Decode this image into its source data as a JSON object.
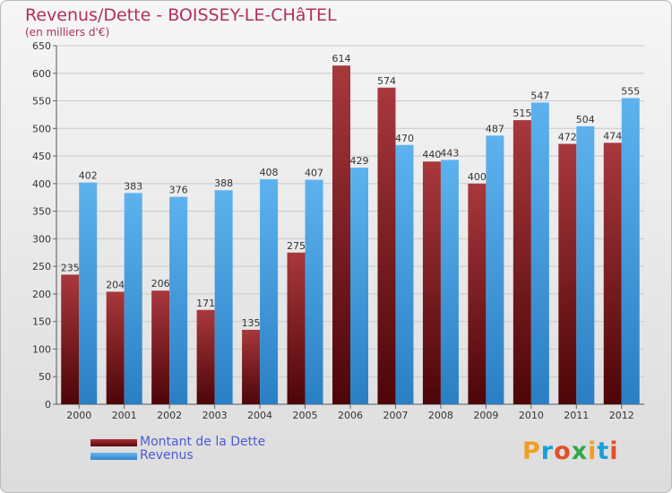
{
  "header": {
    "title": "Revenus/Dette - BOISSEY-LE-CHâTEL",
    "subtitle": "(en milliers d'€)"
  },
  "legend": {
    "dette_label": "Montant de la Dette",
    "revenus_label": "Revenus"
  },
  "logo": {
    "text": "Proxiti"
  },
  "colors": {
    "dette": "#7a1418",
    "revenus": "#4aa3e6",
    "title": "#b0305a",
    "legend_text": "#4b5bd4",
    "grid": "#c8c8c8"
  },
  "chart_data": {
    "type": "bar",
    "title": "Revenus/Dette - BOISSEY-LE-CHâTEL",
    "subtitle": "(en milliers d'€)",
    "categories": [
      "2000",
      "2001",
      "2002",
      "2003",
      "2004",
      "2005",
      "2006",
      "2007",
      "2008",
      "2009",
      "2010",
      "2011",
      "2012"
    ],
    "series": [
      {
        "name": "Montant de la Dette",
        "values": [
          235,
          204,
          206,
          171,
          135,
          275,
          614,
          574,
          440,
          400,
          515,
          472,
          474
        ]
      },
      {
        "name": "Revenus",
        "values": [
          402,
          383,
          376,
          388,
          408,
          407,
          429,
          470,
          443,
          487,
          547,
          504,
          555
        ]
      }
    ],
    "ylim": [
      0,
      650
    ],
    "yticks": [
      0,
      50,
      100,
      150,
      200,
      250,
      300,
      350,
      400,
      450,
      500,
      550,
      600,
      650
    ],
    "grid": true,
    "legend_position": "bottom-left",
    "xlabel": "",
    "ylabel": ""
  }
}
